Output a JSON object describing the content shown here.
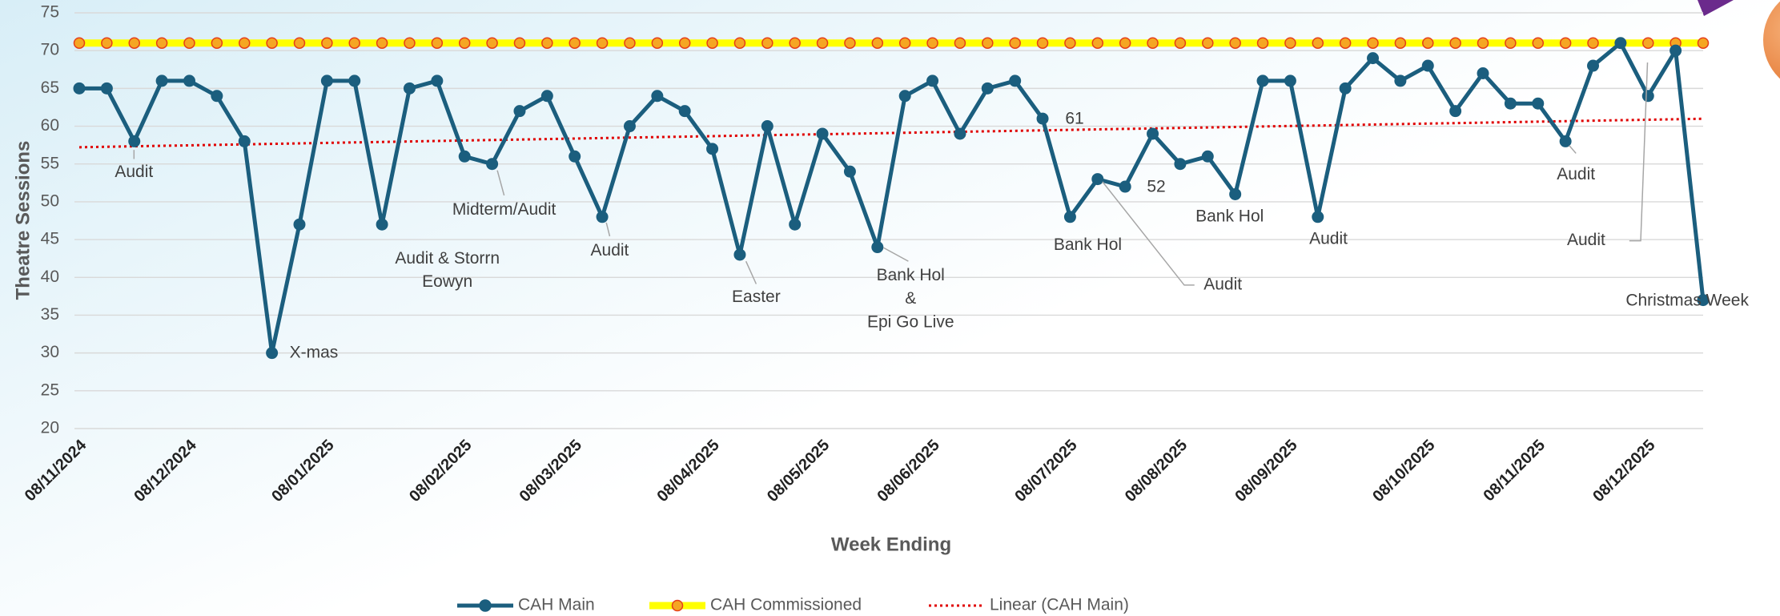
{
  "chart_data": {
    "type": "line",
    "xlabel": "Week Ending",
    "ylabel": "Theatre Sessions",
    "categories": [
      "08/11/2024",
      null,
      null,
      null,
      "08/12/2024",
      null,
      null,
      null,
      null,
      "08/01/2025",
      null,
      null,
      null,
      null,
      "08/02/2025",
      null,
      null,
      null,
      "08/03/2025",
      null,
      null,
      null,
      null,
      "08/04/2025",
      null,
      null,
      null,
      "08/05/2025",
      null,
      null,
      null,
      "08/06/2025",
      null,
      null,
      null,
      null,
      "08/07/2025",
      null,
      null,
      null,
      "08/08/2025",
      null,
      null,
      null,
      "08/09/2025",
      null,
      null,
      null,
      null,
      "08/10/2025",
      null,
      null,
      null,
      "08/11/2025",
      null,
      null,
      null,
      "08/12/2025",
      null,
      null
    ],
    "series": [
      {
        "name": "CAH Main",
        "color": "#1b5e7e",
        "values": [
          65,
          65,
          58,
          66,
          66,
          64,
          58,
          30,
          47,
          66,
          66,
          47,
          65,
          66,
          56,
          55,
          62,
          64,
          56,
          48,
          60,
          64,
          62,
          57,
          43,
          60,
          47,
          59,
          54,
          44,
          64,
          66,
          59,
          65,
          66,
          61,
          48,
          53,
          52,
          59,
          55,
          56,
          51,
          66,
          66,
          48,
          65,
          69,
          66,
          68,
          62,
          67,
          63,
          63,
          58,
          68,
          71,
          64,
          70,
          37
        ]
      },
      {
        "name": "CAH Commissioned",
        "color": "#ffff00",
        "marker_color": "#f5a623",
        "marker_edge": "#e53e1a",
        "values": [
          71,
          71,
          71,
          71,
          71,
          71,
          71,
          71,
          71,
          71,
          71,
          71,
          71,
          71,
          71,
          71,
          71,
          71,
          71,
          71,
          71,
          71,
          71,
          71,
          71,
          71,
          71,
          71,
          71,
          71,
          71,
          71,
          71,
          71,
          71,
          71,
          71,
          71,
          71,
          71,
          71,
          71,
          71,
          71,
          71,
          71,
          71,
          71,
          71,
          71,
          71,
          71,
          71,
          71,
          71,
          71,
          71,
          71,
          71,
          71
        ]
      }
    ],
    "trendline": {
      "name": "Linear (CAH Main)",
      "color": "#e00000"
    },
    "annotations": [
      [
        "Audit"
      ],
      [
        "X-mas"
      ],
      [
        "Audit & Storrn",
        "Eowyn"
      ],
      [
        "Midterm/Audit"
      ],
      [
        "Audit"
      ],
      [
        "Easter"
      ],
      [
        "Bank Hol",
        "&",
        "Epi Go Live"
      ],
      [
        "Bank Hol"
      ],
      [
        "Audit"
      ],
      [
        "Bank Hol"
      ],
      [
        "Audit"
      ],
      [
        "Audit"
      ],
      [
        "Audit"
      ],
      [
        "Christmas Week"
      ]
    ],
    "ylim": [
      20,
      75
    ],
    "yticks": [
      20,
      25,
      30,
      35,
      40,
      45,
      50,
      55,
      60,
      65,
      70,
      75
    ],
    "grid": true,
    "legend": "bottom"
  }
}
